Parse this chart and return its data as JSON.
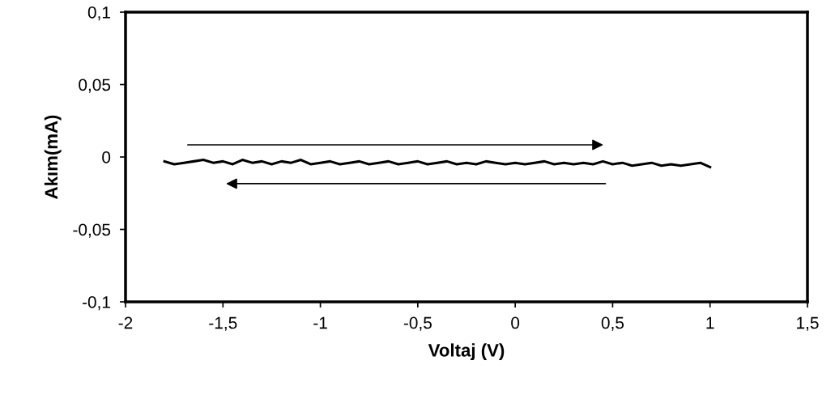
{
  "chart_data": {
    "type": "line",
    "xlabel": "Voltaj (V)",
    "ylabel": "Akım(mA)",
    "x": [
      -1.8,
      -1.75,
      -1.7,
      -1.65,
      -1.6,
      -1.55,
      -1.5,
      -1.45,
      -1.4,
      -1.35,
      -1.3,
      -1.25,
      -1.2,
      -1.15,
      -1.1,
      -1.05,
      -1.0,
      -0.95,
      -0.9,
      -0.85,
      -0.8,
      -0.75,
      -0.7,
      -0.65,
      -0.6,
      -0.55,
      -0.5,
      -0.45,
      -0.4,
      -0.35,
      -0.3,
      -0.25,
      -0.2,
      -0.15,
      -0.1,
      -0.05,
      0.0,
      0.05,
      0.1,
      0.15,
      0.2,
      0.25,
      0.3,
      0.35,
      0.4,
      0.45,
      0.5,
      0.55,
      0.6,
      0.65,
      0.7,
      0.75,
      0.8,
      0.85,
      0.9,
      0.95,
      1.0
    ],
    "series": [
      {
        "color": "#000000",
        "values": [
          -0.003,
          -0.005,
          -0.004,
          -0.003,
          -0.002,
          -0.004,
          -0.003,
          -0.005,
          -0.002,
          -0.004,
          -0.003,
          -0.005,
          -0.003,
          -0.004,
          -0.002,
          -0.005,
          -0.004,
          -0.003,
          -0.005,
          -0.004,
          -0.003,
          -0.005,
          -0.004,
          -0.003,
          -0.005,
          -0.004,
          -0.003,
          -0.005,
          -0.004,
          -0.003,
          -0.005,
          -0.004,
          -0.005,
          -0.003,
          -0.004,
          -0.005,
          -0.004,
          -0.005,
          -0.004,
          -0.003,
          -0.005,
          -0.004,
          -0.005,
          -0.004,
          -0.005,
          -0.003,
          -0.005,
          -0.004,
          -0.006,
          -0.005,
          -0.004,
          -0.006,
          -0.005,
          -0.006,
          -0.005,
          -0.004,
          -0.007
        ]
      }
    ],
    "xlim": [
      -2,
      1.5
    ],
    "xticks": [
      {
        "value": -2,
        "label": "-2"
      },
      {
        "value": -1.5,
        "label": "-1,5"
      },
      {
        "value": -1,
        "label": "-1"
      },
      {
        "value": -0.5,
        "label": "-0,5"
      },
      {
        "value": 0,
        "label": "0"
      },
      {
        "value": 0.5,
        "label": "0,5"
      },
      {
        "value": 1,
        "label": "1"
      },
      {
        "value": 1.5,
        "label": "1,5"
      }
    ],
    "ylim": [
      -0.1,
      0.1
    ],
    "yticks": [
      {
        "value": -0.1,
        "label": "-0,1"
      },
      {
        "value": -0.05,
        "label": "-0,05"
      },
      {
        "value": 0,
        "label": "0"
      },
      {
        "value": 0.05,
        "label": "0,05"
      },
      {
        "value": 0.1,
        "label": "0,1"
      }
    ],
    "grid": false,
    "legend": false,
    "marker": "none",
    "line_style": "solid"
  }
}
